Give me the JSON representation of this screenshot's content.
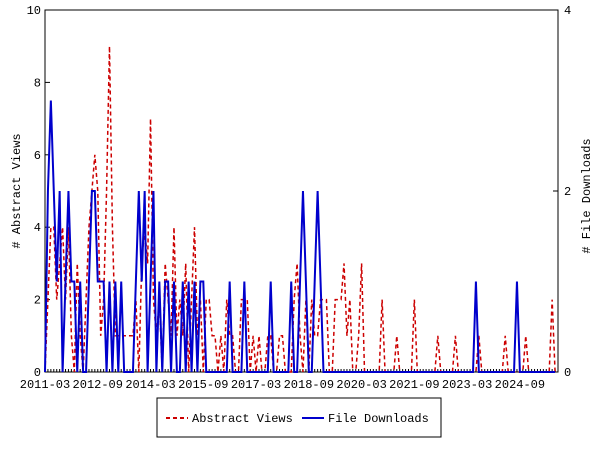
{
  "chart_data": {
    "type": "line",
    "y_label": "# Abstract Views",
    "y2_label": "# File Downloads",
    "categories": [
      "2011-03",
      null,
      null,
      null,
      null,
      null,
      null,
      null,
      null,
      null,
      null,
      null,
      null,
      null,
      null,
      null,
      null,
      null,
      "2012-09",
      null,
      null,
      null,
      null,
      null,
      null,
      null,
      null,
      null,
      null,
      null,
      null,
      null,
      null,
      null,
      null,
      null,
      "2014-03",
      null,
      null,
      null,
      null,
      null,
      null,
      null,
      null,
      null,
      null,
      null,
      null,
      null,
      null,
      null,
      null,
      null,
      "2015-09",
      null,
      null,
      null,
      null,
      null,
      null,
      null,
      null,
      null,
      null,
      null,
      null,
      null,
      null,
      null,
      null,
      null,
      "2017-03",
      null,
      null,
      null,
      null,
      null,
      null,
      null,
      null,
      null,
      null,
      null,
      null,
      null,
      null,
      null,
      null,
      null,
      "2018-09",
      null,
      null,
      null,
      null,
      null,
      null,
      null,
      null,
      null,
      null,
      null,
      null,
      null,
      null,
      null,
      null,
      null,
      "2020-03",
      null,
      null,
      null,
      null,
      null,
      null,
      null,
      null,
      null,
      null,
      null,
      null,
      null,
      null,
      null,
      null,
      null,
      "2021-09",
      null,
      null,
      null,
      null,
      null,
      null,
      null,
      null,
      null,
      null,
      null,
      null,
      null,
      null,
      null,
      null,
      null,
      "2023-03",
      null,
      null,
      null,
      null,
      null,
      null,
      null,
      null,
      null,
      null,
      null,
      null,
      null,
      null,
      null,
      null,
      null,
      "2024-09",
      null,
      null,
      null,
      null,
      null,
      null,
      null,
      null,
      null,
      null,
      null,
      null
    ],
    "series": [
      {
        "name": "Abstract Views",
        "color": "#cc0000",
        "dash": true,
        "values": [
          0,
          2,
          4,
          4,
          2,
          3,
          4,
          2,
          4,
          1,
          0,
          3,
          1,
          0,
          2,
          4,
          5,
          6,
          5,
          1,
          2,
          5,
          9,
          4,
          1,
          1,
          1,
          1,
          1,
          1,
          1,
          2,
          0,
          3,
          4,
          3,
          7,
          2,
          1,
          2,
          0,
          3,
          2,
          1,
          4,
          1,
          2,
          1,
          3,
          0,
          2,
          4,
          1,
          2,
          0,
          2,
          2,
          1,
          1,
          0,
          1,
          0,
          2,
          1,
          1,
          0,
          0,
          2,
          2,
          2,
          0,
          1,
          0,
          1,
          0,
          0,
          1,
          1,
          0,
          0,
          1,
          1,
          0,
          0,
          0,
          2,
          3,
          1,
          0,
          2,
          0,
          2,
          1,
          1,
          2,
          2,
          2,
          0,
          0,
          2,
          2,
          2,
          3,
          1,
          2,
          0,
          0,
          1,
          3,
          0,
          0,
          0,
          0,
          0,
          0,
          2,
          0,
          0,
          0,
          0,
          1,
          0,
          0,
          0,
          0,
          0,
          2,
          0,
          0,
          0,
          0,
          0,
          0,
          0,
          1,
          0,
          0,
          0,
          0,
          0,
          1,
          0,
          0,
          0,
          0,
          0,
          0,
          0,
          1,
          0,
          0,
          0,
          0,
          0,
          0,
          0,
          0,
          1,
          0,
          0,
          0,
          0,
          0,
          0,
          1,
          0,
          0,
          0,
          0,
          0,
          0,
          0,
          0,
          2,
          0
        ]
      },
      {
        "name": "File Downloads",
        "color": "#0000cc",
        "dash": false,
        "axis": "y2",
        "values": [
          0,
          2,
          3,
          2,
          1,
          2,
          0,
          1,
          2,
          1,
          1,
          0,
          1,
          0,
          0,
          1,
          2,
          2,
          1,
          1,
          1,
          0,
          1,
          0,
          1,
          0,
          1,
          0,
          0,
          0,
          0,
          1,
          2,
          1,
          2,
          0,
          1,
          2,
          0,
          1,
          0,
          1,
          1,
          0,
          1,
          0,
          0,
          1,
          0,
          1,
          0,
          1,
          0,
          1,
          1,
          0,
          0,
          0,
          0,
          0,
          0,
          0,
          0,
          1,
          0,
          0,
          0,
          0,
          1,
          0,
          0,
          0,
          0,
          0,
          0,
          0,
          0,
          1,
          0,
          0,
          0,
          0,
          0,
          0,
          1,
          0,
          0,
          1,
          2,
          1,
          0,
          0,
          1,
          2,
          1,
          0,
          0,
          0,
          0,
          0,
          0,
          0,
          0,
          0,
          0,
          0,
          0,
          0,
          0,
          0,
          0,
          0,
          0,
          0,
          0,
          0,
          0,
          0,
          0,
          0,
          0,
          0,
          0,
          0,
          0,
          0,
          0,
          0,
          0,
          0,
          0,
          0,
          0,
          0,
          0,
          0,
          0,
          0,
          0,
          0,
          0,
          0,
          0,
          0,
          0,
          0,
          0,
          1,
          0,
          0,
          0,
          0,
          0,
          0,
          0,
          0,
          0,
          0,
          0,
          0,
          0,
          1,
          0,
          0,
          0,
          0,
          0,
          0,
          0,
          0,
          0,
          0,
          0,
          0,
          0
        ]
      }
    ],
    "ylim": [
      0,
      10
    ],
    "yticks": [
      0,
      2,
      4,
      6,
      8,
      10
    ],
    "y2lim": [
      0,
      4
    ],
    "y2ticks": [
      0,
      2,
      4
    ],
    "legend": "bottom"
  }
}
